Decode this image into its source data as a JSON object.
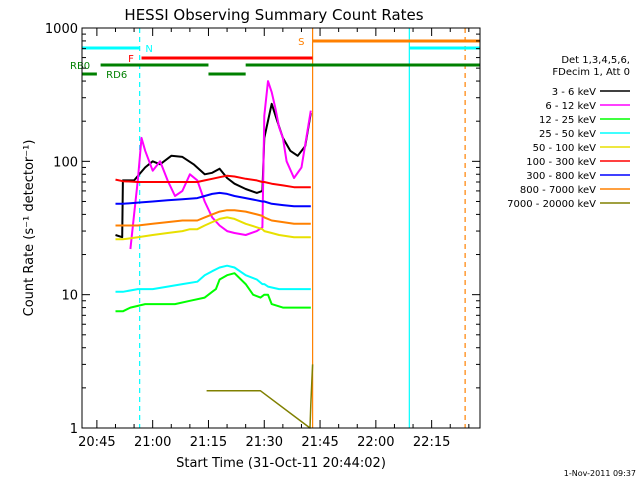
{
  "chart_data": {
    "type": "line",
    "title": "HESSI Observing Summary Count Rates",
    "xlabel": "Start Time (31-Oct-11 20:44:02)",
    "ylabel": "Count Rate (s⁻¹ detector⁻¹)",
    "y_scale": "log",
    "ylim": [
      1,
      1000
    ],
    "xlim_minutes_after_2030": [
      11,
      118
    ],
    "x_ticks": [
      {
        "label": "20:45",
        "minute": 15
      },
      {
        "label": "21:00",
        "minute": 30
      },
      {
        "label": "21:15",
        "minute": 45
      },
      {
        "label": "21:30",
        "minute": 60
      },
      {
        "label": "21:45",
        "minute": 75
      },
      {
        "label": "22:00",
        "minute": 90
      },
      {
        "label": "22:15",
        "minute": 105
      }
    ],
    "y_ticks": [
      {
        "label": "1",
        "value": 1
      },
      {
        "label": "10",
        "value": 10
      },
      {
        "label": "100",
        "value": 100
      },
      {
        "label": "1000",
        "value": 1000
      }
    ],
    "legend": {
      "placement": "right",
      "header": [
        "Det 1,3,4,5,6,",
        "FDecim 1, Att 0"
      ]
    },
    "series": [
      {
        "name": "3 - 6 keV",
        "color": "#000000",
        "points": [
          [
            20,
            28
          ],
          [
            21.8,
            27
          ],
          [
            22,
            72
          ],
          [
            25,
            72
          ],
          [
            28,
            90
          ],
          [
            30,
            100
          ],
          [
            32,
            95
          ],
          [
            35,
            110
          ],
          [
            38,
            108
          ],
          [
            41,
            95
          ],
          [
            44,
            80
          ],
          [
            46,
            82
          ],
          [
            48,
            88
          ],
          [
            50,
            75
          ],
          [
            52,
            68
          ],
          [
            55,
            62
          ],
          [
            58,
            58
          ],
          [
            59.5,
            60
          ],
          [
            60,
            150
          ],
          [
            62,
            270
          ],
          [
            63.5,
            200
          ],
          [
            65,
            150
          ],
          [
            67,
            120
          ],
          [
            69,
            110
          ],
          [
            71,
            130
          ],
          [
            72.5,
            230
          ]
        ]
      },
      {
        "name": "6 - 12 keV",
        "color": "#ff00ff",
        "points": [
          [
            24,
            22
          ],
          [
            25,
            40
          ],
          [
            26,
            72
          ],
          [
            27,
            150
          ],
          [
            28,
            120
          ],
          [
            30,
            85
          ],
          [
            32,
            100
          ],
          [
            34,
            72
          ],
          [
            36,
            55
          ],
          [
            38,
            60
          ],
          [
            40,
            80
          ],
          [
            42,
            72
          ],
          [
            44,
            50
          ],
          [
            46,
            38
          ],
          [
            48,
            33
          ],
          [
            50,
            30
          ],
          [
            52,
            29
          ],
          [
            55,
            28
          ],
          [
            58,
            30
          ],
          [
            59.5,
            32
          ],
          [
            60,
            220
          ],
          [
            61,
            400
          ],
          [
            62,
            330
          ],
          [
            63,
            250
          ],
          [
            64,
            180
          ],
          [
            65,
            150
          ],
          [
            66,
            100
          ],
          [
            68,
            75
          ],
          [
            70,
            90
          ],
          [
            72.5,
            240
          ]
        ]
      },
      {
        "name": "12 - 25 keV",
        "color": "#00ff00",
        "points": [
          [
            20,
            7.5
          ],
          [
            22,
            7.5
          ],
          [
            24,
            8
          ],
          [
            28,
            8.5
          ],
          [
            32,
            8.5
          ],
          [
            36,
            8.5
          ],
          [
            40,
            9
          ],
          [
            44,
            9.5
          ],
          [
            46,
            10.5
          ],
          [
            47,
            11
          ],
          [
            48,
            13
          ],
          [
            50,
            14
          ],
          [
            52,
            14.5
          ],
          [
            55,
            12
          ],
          [
            57,
            10
          ],
          [
            59,
            9.5
          ],
          [
            60,
            10
          ],
          [
            61,
            10
          ],
          [
            62,
            8.5
          ],
          [
            65,
            8
          ],
          [
            68,
            8
          ],
          [
            72.5,
            8
          ]
        ]
      },
      {
        "name": "25 - 50 keV",
        "color": "#00ffff",
        "points": [
          [
            20,
            10.5
          ],
          [
            22,
            10.5
          ],
          [
            26,
            11
          ],
          [
            30,
            11
          ],
          [
            34,
            11.5
          ],
          [
            38,
            12
          ],
          [
            42,
            12.5
          ],
          [
            44,
            14
          ],
          [
            46,
            15
          ],
          [
            48,
            16
          ],
          [
            50,
            16.5
          ],
          [
            52,
            16
          ],
          [
            55,
            14
          ],
          [
            58,
            13
          ],
          [
            59.5,
            12
          ],
          [
            60,
            12
          ],
          [
            61,
            11.5
          ],
          [
            64,
            11
          ],
          [
            68,
            11
          ],
          [
            72.5,
            11
          ]
        ]
      },
      {
        "name": "50 - 100 keV",
        "color": "#e8e000",
        "points": [
          [
            20,
            26
          ],
          [
            22,
            26
          ],
          [
            26,
            27
          ],
          [
            30,
            28
          ],
          [
            34,
            29
          ],
          [
            38,
            30
          ],
          [
            40,
            31
          ],
          [
            42,
            31
          ],
          [
            44,
            33
          ],
          [
            46,
            35
          ],
          [
            48,
            37
          ],
          [
            50,
            38
          ],
          [
            52,
            37
          ],
          [
            55,
            34
          ],
          [
            58,
            32
          ],
          [
            59.5,
            31
          ],
          [
            60,
            30
          ],
          [
            62,
            29
          ],
          [
            64,
            28
          ],
          [
            68,
            27
          ],
          [
            72.5,
            27
          ]
        ]
      },
      {
        "name": "100 - 300 keV",
        "color": "#ff0000",
        "points": [
          [
            20,
            73
          ],
          [
            22,
            71
          ],
          [
            26,
            70
          ],
          [
            30,
            70
          ],
          [
            34,
            70
          ],
          [
            38,
            70
          ],
          [
            42,
            70
          ],
          [
            44,
            72
          ],
          [
            46,
            74
          ],
          [
            48,
            76
          ],
          [
            50,
            78
          ],
          [
            52,
            77
          ],
          [
            55,
            74
          ],
          [
            58,
            72
          ],
          [
            59.5,
            70
          ],
          [
            60,
            70
          ],
          [
            62,
            68
          ],
          [
            65,
            66
          ],
          [
            68,
            64
          ],
          [
            72.5,
            64
          ]
        ]
      },
      {
        "name": "300 - 800 keV",
        "color": "#0000ff",
        "points": [
          [
            20,
            48
          ],
          [
            22,
            48
          ],
          [
            26,
            49
          ],
          [
            30,
            50
          ],
          [
            34,
            51
          ],
          [
            38,
            52
          ],
          [
            42,
            53
          ],
          [
            44,
            55
          ],
          [
            46,
            57
          ],
          [
            48,
            58
          ],
          [
            50,
            57
          ],
          [
            52,
            55
          ],
          [
            55,
            53
          ],
          [
            58,
            51
          ],
          [
            59.5,
            50
          ],
          [
            60,
            50
          ],
          [
            62,
            48
          ],
          [
            65,
            47
          ],
          [
            68,
            46
          ],
          [
            72.5,
            46
          ]
        ]
      },
      {
        "name": "800 - 7000 keV",
        "color": "#ff8000",
        "points": [
          [
            20,
            33
          ],
          [
            22,
            33
          ],
          [
            26,
            33
          ],
          [
            30,
            34
          ],
          [
            34,
            35
          ],
          [
            38,
            36
          ],
          [
            42,
            36
          ],
          [
            44,
            38
          ],
          [
            46,
            40
          ],
          [
            48,
            42
          ],
          [
            50,
            43
          ],
          [
            52,
            43
          ],
          [
            55,
            42
          ],
          [
            58,
            40
          ],
          [
            59.5,
            39
          ],
          [
            60,
            38
          ],
          [
            62,
            36
          ],
          [
            65,
            35
          ],
          [
            68,
            34
          ],
          [
            72.5,
            34
          ]
        ]
      },
      {
        "name": "7000 - 20000 keV",
        "color": "#808000",
        "points": [
          [
            44.5,
            1.9
          ],
          [
            59,
            1.9
          ],
          [
            72.3,
            1.0
          ],
          [
            72.5,
            1.5
          ],
          [
            73,
            3
          ]
        ]
      }
    ],
    "flag_bars": [
      {
        "label": "N",
        "color": "#00ffff",
        "level": 1,
        "segments": [
          [
            11,
            26.5
          ],
          [
            99,
            118
          ]
        ],
        "label_at": 27.5
      },
      {
        "label": "S",
        "color": "#ff8000",
        "level": 2,
        "segments": [
          [
            73,
            118
          ]
        ],
        "label_at": 70.5
      },
      {
        "label": "F",
        "color": "#ff0000",
        "level": 3,
        "segments": [
          [
            27,
            73
          ]
        ],
        "label_at": 25.5
      },
      {
        "label": "RB0",
        "color": "#008000",
        "level": 4,
        "segments": [
          [
            16,
            45
          ],
          [
            55,
            118
          ]
        ],
        "label_at": 11
      },
      {
        "label": "RD6",
        "color": "#008000",
        "level": 5,
        "segments": [
          [
            11,
            15
          ],
          [
            45,
            55
          ]
        ],
        "label_at": 17.5
      }
    ],
    "vertical_markers": [
      {
        "minute": 26.5,
        "color": "#00ffff",
        "style": "dashed"
      },
      {
        "minute": 73,
        "color": "#ff8000",
        "style": "solid"
      },
      {
        "minute": 99,
        "color": "#00ffff",
        "style": "solid"
      },
      {
        "minute": 114,
        "color": "#ff8000",
        "style": "dashed"
      }
    ]
  },
  "footer": {
    "timestamp": "1-Nov-2011 09:37"
  }
}
